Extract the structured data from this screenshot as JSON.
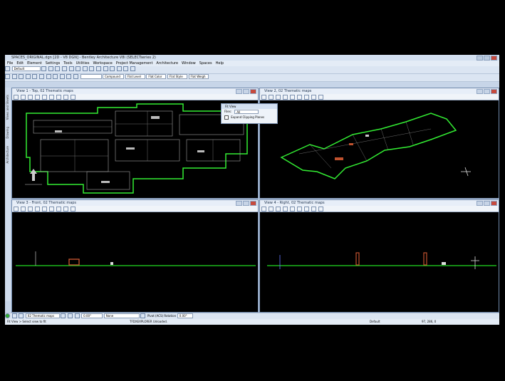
{
  "app": {
    "title": "SPACES_ORIGINAL.dgn [2D - V8 DGN] - Bentley Architecture V8i (SELECTseries 2)",
    "menu": [
      "File",
      "Edit",
      "Element",
      "Settings",
      "Tools",
      "Utilities",
      "Workspace",
      "Project Management",
      "Architecture",
      "Window",
      "Spaces",
      "Help"
    ],
    "toolbar": {
      "level": "Default",
      "active_angle": "",
      "compound": "Compound",
      "flat_level": "Flat Level",
      "flat_color": "Flat Color",
      "flat_style": "Flat Style",
      "flat_weight": "Flat Weigh"
    },
    "side_tabs": [
      "Views and Sheets",
      "Drawing",
      "Architecture"
    ]
  },
  "views": [
    {
      "title": "View 1 - Top, 02 Thematic maps"
    },
    {
      "title": "View 2, 02 Thematic maps"
    },
    {
      "title": "View 3 - Front, 02 Thematic maps"
    },
    {
      "title": "View 4 - Right, 02 Thematic maps"
    }
  ],
  "fit_dialog": {
    "title": "Fit View",
    "files_label": "Files:",
    "files_value": "All",
    "expand_label": "Expand Clipping Planes"
  },
  "bottom_toolbar": {
    "map_select": "02 Thematic maps",
    "value1": "0.00°",
    "none_select": "None",
    "rotation_label": "Pivot (ACS) Rotation",
    "rotation_value": "0.00°"
  },
  "status": {
    "prompt": "Fit View > Select view to fit",
    "message": "TFDXEXPLORER Unloaded.",
    "level": "Default",
    "coords": "97, 286, 0"
  },
  "colors": {
    "outline": "#33ee33",
    "ground": "#22dd22",
    "background": "#000000",
    "chrome": "#c7d5e8"
  }
}
